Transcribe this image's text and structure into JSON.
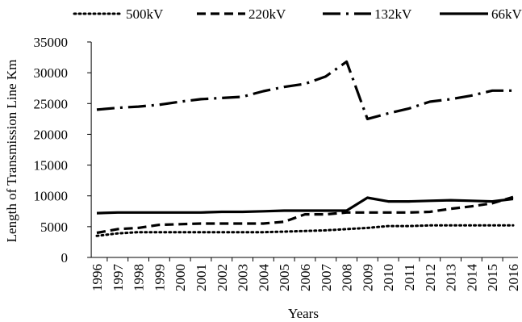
{
  "chart_data": {
    "type": "line",
    "title": "",
    "xlabel": "Years",
    "ylabel": "Length of Transmission Line Km",
    "ylim": [
      0,
      35000
    ],
    "yticks": [
      0,
      5000,
      10000,
      15000,
      20000,
      25000,
      30000,
      35000
    ],
    "grid": false,
    "legend_position": "top",
    "categories": [
      "1996",
      "1997",
      "1998",
      "1999",
      "2000",
      "2001",
      "2002",
      "2003",
      "2004",
      "2005",
      "2006",
      "2007",
      "2008",
      "2009",
      "2010",
      "2011",
      "2012",
      "2013",
      "2014",
      "2015",
      "2016"
    ],
    "series": [
      {
        "name": "500kV",
        "dash": "dotted",
        "color": "#000000",
        "values": [
          3500,
          3900,
          4100,
          4100,
          4100,
          4100,
          4100,
          4100,
          4100,
          4200,
          4300,
          4400,
          4600,
          4800,
          5100,
          5100,
          5200,
          5200,
          5200,
          5200,
          5200
        ]
      },
      {
        "name": "220kV",
        "dash": "dashed",
        "color": "#000000",
        "values": [
          4000,
          4600,
          4800,
          5300,
          5400,
          5500,
          5500,
          5500,
          5500,
          5800,
          7000,
          7000,
          7300,
          7300,
          7300,
          7300,
          7400,
          7900,
          8300,
          8800,
          9800
        ]
      },
      {
        "name": "132kV",
        "dash": "dash-dot",
        "color": "#000000",
        "values": [
          24000,
          24300,
          24500,
          24800,
          25300,
          25700,
          25900,
          26100,
          27000,
          27700,
          28200,
          29400,
          31800,
          22500,
          23400,
          24200,
          25300,
          25700,
          26300,
          27100,
          27100
        ]
      },
      {
        "name": "66kV",
        "dash": "solid",
        "color": "#000000",
        "values": [
          7200,
          7300,
          7300,
          7300,
          7300,
          7300,
          7400,
          7400,
          7500,
          7600,
          7600,
          7600,
          7600,
          9700,
          9100,
          9100,
          9200,
          9300,
          9200,
          9100,
          9500
        ]
      }
    ]
  }
}
